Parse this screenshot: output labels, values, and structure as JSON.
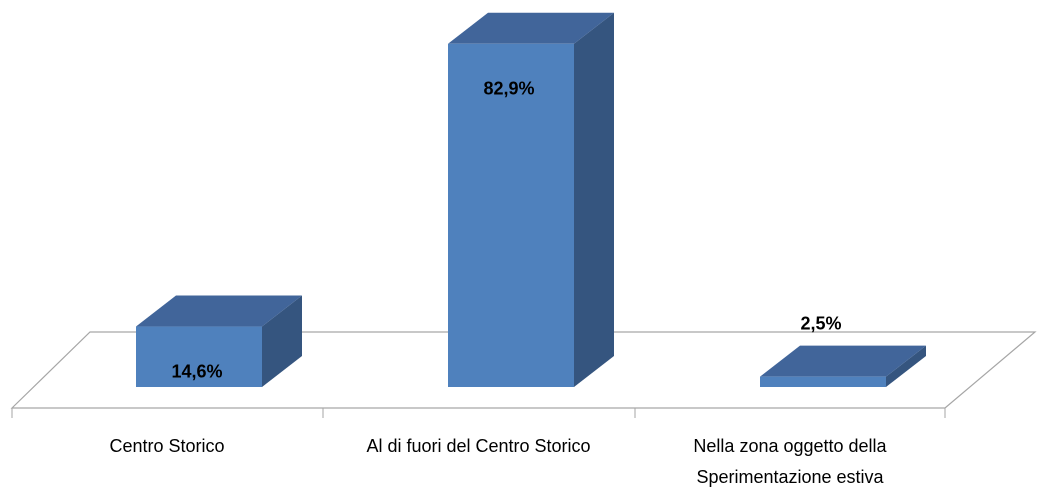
{
  "chart_data": {
    "type": "bar3d",
    "categories": [
      "Centro Storico",
      "Al di fuori del Centro Storico",
      "Nella zona oggetto della Sperimentazione estiva"
    ],
    "values": [
      14.6,
      82.9,
      2.5
    ],
    "value_labels": [
      "14,6%",
      "82,9%",
      "2,5%"
    ],
    "color": "#4f81bd"
  }
}
